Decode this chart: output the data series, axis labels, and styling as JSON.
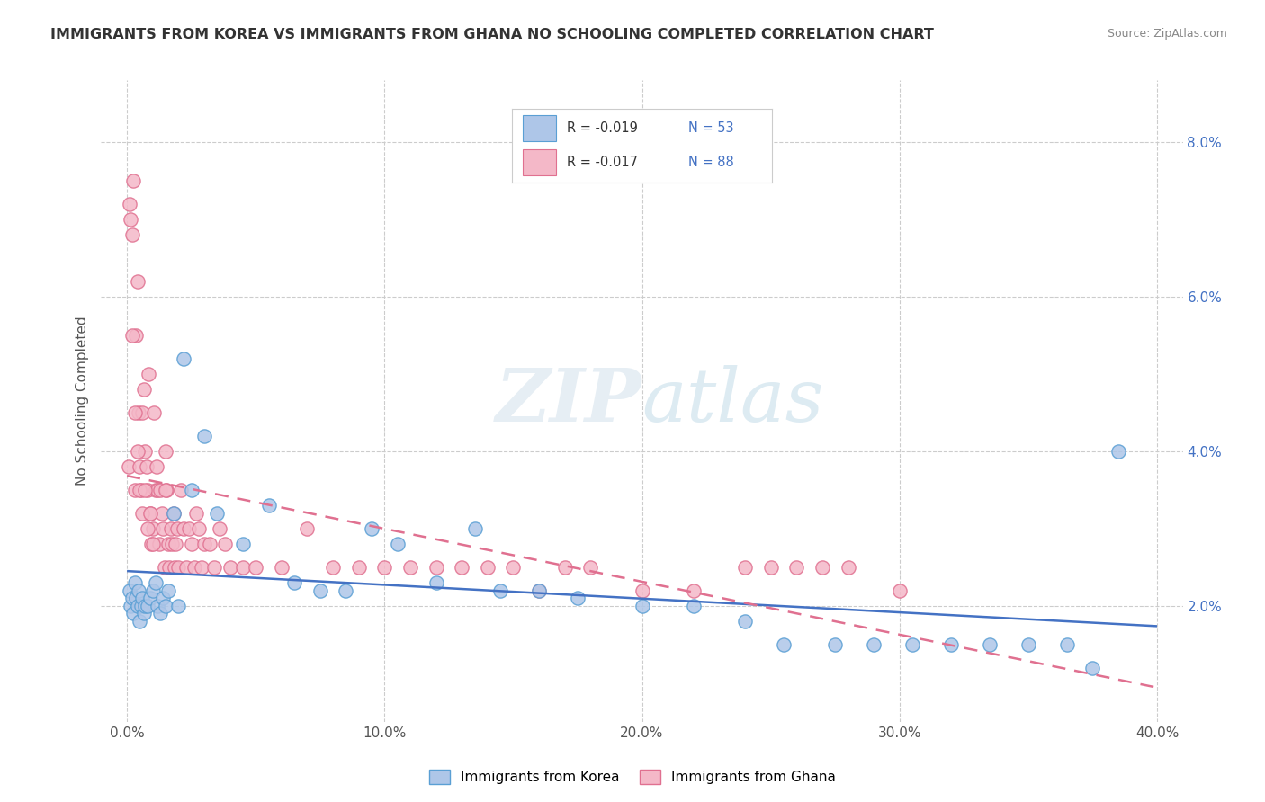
{
  "title": "IMMIGRANTS FROM KOREA VS IMMIGRANTS FROM GHANA NO SCHOOLING COMPLETED CORRELATION CHART",
  "source_text": "Source: ZipAtlas.com",
  "ylabel": "No Schooling Completed",
  "x_tick_labels": [
    "0.0%",
    "10.0%",
    "20.0%",
    "30.0%",
    "40.0%"
  ],
  "x_tick_values": [
    0.0,
    10.0,
    20.0,
    30.0,
    40.0
  ],
  "y_tick_labels_right": [
    "2.0%",
    "4.0%",
    "6.0%",
    "8.0%"
  ],
  "y_tick_values_right": [
    2.0,
    4.0,
    6.0,
    8.0
  ],
  "legend_entry1": "R = -0.019   N = 53",
  "legend_entry2": "R = -0.017   N = 88",
  "legend_label1": "Immigrants from Korea",
  "legend_label2": "Immigrants from Ghana",
  "korea_color": "#aec6e8",
  "ghana_color": "#f4b8c8",
  "korea_edge_color": "#5a9fd4",
  "ghana_edge_color": "#e07090",
  "trendline_korea_color": "#4472c4",
  "trendline_ghana_color": "#e07090",
  "watermark": "ZIPatlas",
  "background_color": "#ffffff",
  "grid_color": "#cccccc",
  "title_color": "#333333",
  "korea_scatter_x": [
    0.1,
    0.15,
    0.2,
    0.25,
    0.3,
    0.35,
    0.4,
    0.45,
    0.5,
    0.55,
    0.6,
    0.65,
    0.7,
    0.8,
    0.9,
    1.0,
    1.1,
    1.2,
    1.3,
    1.4,
    1.5,
    1.6,
    1.8,
    2.0,
    2.2,
    2.5,
    3.0,
    3.5,
    4.5,
    5.5,
    6.5,
    7.5,
    8.5,
    9.5,
    10.5,
    12.0,
    13.5,
    14.5,
    16.0,
    17.5,
    20.0,
    22.0,
    24.0,
    25.5,
    27.5,
    29.0,
    30.5,
    32.0,
    33.5,
    35.0,
    36.5,
    37.5,
    38.5
  ],
  "korea_scatter_y": [
    2.2,
    2.0,
    2.1,
    1.9,
    2.3,
    2.1,
    2.0,
    2.2,
    1.8,
    2.0,
    2.1,
    1.9,
    2.0,
    2.0,
    2.1,
    2.2,
    2.3,
    2.0,
    1.9,
    2.1,
    2.0,
    2.2,
    3.2,
    2.0,
    5.2,
    3.5,
    4.2,
    3.2,
    2.8,
    3.3,
    2.3,
    2.2,
    2.2,
    3.0,
    2.8,
    2.3,
    3.0,
    2.2,
    2.2,
    2.1,
    2.0,
    2.0,
    1.8,
    1.5,
    1.5,
    1.5,
    1.5,
    1.5,
    1.5,
    1.5,
    1.5,
    1.2,
    4.0
  ],
  "ghana_scatter_x": [
    0.05,
    0.1,
    0.15,
    0.2,
    0.25,
    0.3,
    0.35,
    0.4,
    0.45,
    0.5,
    0.55,
    0.6,
    0.65,
    0.7,
    0.75,
    0.8,
    0.85,
    0.9,
    0.95,
    1.0,
    1.05,
    1.1,
    1.15,
    1.2,
    1.25,
    1.3,
    1.35,
    1.4,
    1.45,
    1.5,
    1.55,
    1.6,
    1.65,
    1.7,
    1.75,
    1.8,
    1.85,
    1.9,
    1.95,
    2.0,
    2.1,
    2.2,
    2.3,
    2.4,
    2.5,
    2.6,
    2.7,
    2.8,
    2.9,
    3.0,
    3.2,
    3.4,
    3.6,
    3.8,
    4.0,
    4.5,
    5.0,
    6.0,
    7.0,
    8.0,
    9.0,
    10.0,
    11.0,
    12.0,
    13.0,
    14.0,
    15.0,
    16.0,
    17.0,
    18.0,
    20.0,
    22.0,
    24.0,
    25.0,
    26.0,
    27.0,
    28.0,
    30.0,
    0.2,
    0.3,
    0.4,
    0.5,
    0.6,
    0.7,
    0.8,
    0.9,
    1.0,
    1.5
  ],
  "ghana_scatter_y": [
    3.8,
    7.2,
    7.0,
    6.8,
    7.5,
    3.5,
    5.5,
    6.2,
    4.5,
    3.8,
    3.5,
    4.5,
    4.8,
    4.0,
    3.8,
    3.5,
    5.0,
    3.2,
    2.8,
    3.0,
    4.5,
    3.5,
    3.8,
    3.5,
    2.8,
    3.5,
    3.2,
    3.0,
    2.5,
    4.0,
    3.5,
    2.8,
    2.5,
    3.0,
    2.8,
    3.2,
    2.5,
    2.8,
    3.0,
    2.5,
    3.5,
    3.0,
    2.5,
    3.0,
    2.8,
    2.5,
    3.2,
    3.0,
    2.5,
    2.8,
    2.8,
    2.5,
    3.0,
    2.8,
    2.5,
    2.5,
    2.5,
    2.5,
    3.0,
    2.5,
    2.5,
    2.5,
    2.5,
    2.5,
    2.5,
    2.5,
    2.5,
    2.2,
    2.5,
    2.5,
    2.2,
    2.2,
    2.5,
    2.5,
    2.5,
    2.5,
    2.5,
    2.2,
    5.5,
    4.5,
    4.0,
    3.5,
    3.2,
    3.5,
    3.0,
    3.2,
    2.8,
    3.5
  ]
}
